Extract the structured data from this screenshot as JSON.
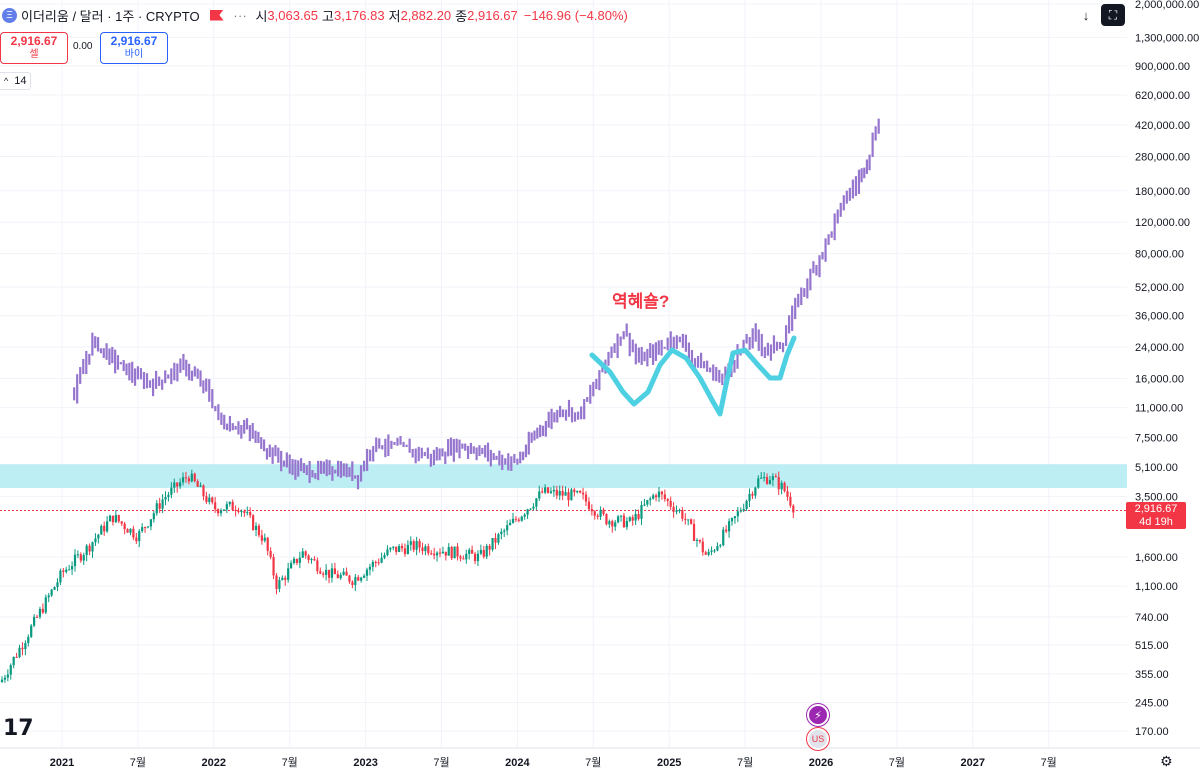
{
  "header": {
    "symbol_title": "이더리움 / 달러 · 1주 · CRYPTO",
    "eth_glyph": "Ξ",
    "dots": "∙∙∙",
    "open_label": "시",
    "open_value": "3,063.65",
    "high_label": "고",
    "high_value": "3,176.83",
    "low_label": "저",
    "low_value": "2,882.20",
    "close_label": "종",
    "close_value": "2,916.67",
    "change": "−146.96 (−4.80%)"
  },
  "trade": {
    "sell_price": "2,916.67",
    "sell_label": "셀",
    "spread": "0.00",
    "buy_price": "2,916.67",
    "buy_label": "바이"
  },
  "study": {
    "chevron": "^",
    "value": "14"
  },
  "toolbar": {
    "down_icon": "↓",
    "fullscreen_icon": "⛶"
  },
  "logo_text": "17",
  "annotation": "역혜숄?",
  "last_price": {
    "value": "2,916.67",
    "countdown": "4d 19h"
  },
  "events": {
    "lightning": "⚡",
    "flag": "US"
  },
  "gear_icon": "⚙",
  "colors": {
    "up": "#089981",
    "down": "#f23645",
    "fractal": "#9575cd",
    "zone": "#b2ebf2",
    "drawing": "#4dd0e1"
  },
  "chart_data": {
    "type": "candlestick",
    "title": "이더리움 / 달러 · 1주 · CRYPTO",
    "y_scale": "log",
    "y_tick_labels": [
      "2,000,000.00",
      "1,300,000.00",
      "900,000.00",
      "620,000.00",
      "420,000.00",
      "280,000.00",
      "180,000.00",
      "120,000.00",
      "80,000.00",
      "52,000.00",
      "36,000.00",
      "24,000.00",
      "16,000.00",
      "11,000.00",
      "7,500.00",
      "5,100.00",
      "3,500.00",
      "1,600.00",
      "1,100.00",
      "740.00",
      "515.00",
      "355.00",
      "245.00",
      "170.00"
    ],
    "x_tick_labels": [
      "2021",
      "7월",
      "2022",
      "7월",
      "2023",
      "7월",
      "2024",
      "7월",
      "2025",
      "7월",
      "2026",
      "7월",
      "2027",
      "7월"
    ],
    "price_series_weekly_close": [
      {
        "date": "2021-01",
        "close": 1300
      },
      {
        "date": "2021-03",
        "close": 1800
      },
      {
        "date": "2021-05",
        "close": 2700
      },
      {
        "date": "2021-07",
        "close": 2100
      },
      {
        "date": "2021-09",
        "close": 3400
      },
      {
        "date": "2021-11",
        "close": 4600
      },
      {
        "date": "2022-01",
        "close": 3000
      },
      {
        "date": "2022-03",
        "close": 3100
      },
      {
        "date": "2022-05",
        "close": 2000
      },
      {
        "date": "2022-06",
        "close": 1100
      },
      {
        "date": "2022-08",
        "close": 1700
      },
      {
        "date": "2022-10",
        "close": 1300
      },
      {
        "date": "2022-12",
        "close": 1200
      },
      {
        "date": "2023-03",
        "close": 1750
      },
      {
        "date": "2023-05",
        "close": 1850
      },
      {
        "date": "2023-08",
        "close": 1700
      },
      {
        "date": "2023-10",
        "close": 1600
      },
      {
        "date": "2023-12",
        "close": 2250
      },
      {
        "date": "2024-03",
        "close": 3700
      },
      {
        "date": "2024-06",
        "close": 3500
      },
      {
        "date": "2024-08",
        "close": 2600
      },
      {
        "date": "2024-10",
        "close": 2500
      },
      {
        "date": "2024-12",
        "close": 3700
      },
      {
        "date": "2025-02",
        "close": 2800
      },
      {
        "date": "2025-04",
        "close": 1600
      },
      {
        "date": "2025-06",
        "close": 2500
      },
      {
        "date": "2025-08",
        "close": 4300
      },
      {
        "date": "2025-09",
        "close": 4500
      },
      {
        "date": "2025-10",
        "close": 3900
      },
      {
        "date": "2025-11",
        "close": 2916.67
      }
    ],
    "zone": {
      "low": 3900,
      "high": 5300
    },
    "last_close": 2916.67,
    "projection_note": "bars pattern projected from 2021 to mid-2026 reaching ~500,000",
    "annotation": "역혜숄?"
  }
}
